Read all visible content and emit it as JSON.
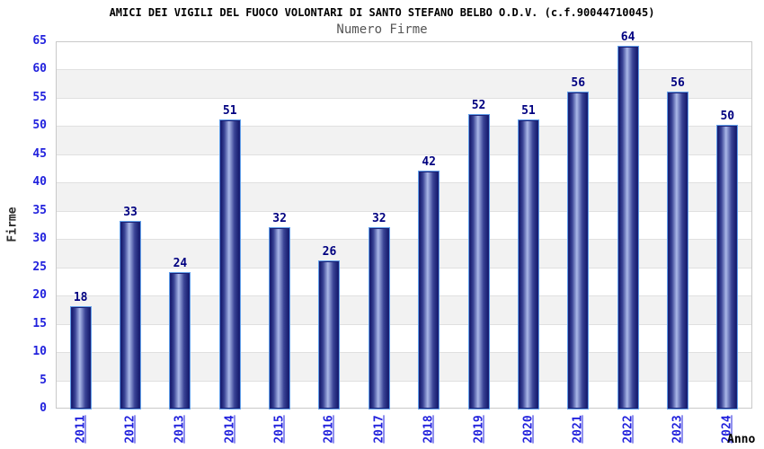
{
  "chart_data": {
    "type": "bar",
    "title": "AMICI DEI VIGILI DEL FUOCO VOLONTARI DI SANTO STEFANO BELBO O.D.V. (c.f.90044710045)",
    "subtitle": "Numero Firme",
    "xlabel": "Anno",
    "ylabel": "Firme",
    "categories": [
      "2011",
      "2012",
      "2013",
      "2014",
      "2015",
      "2016",
      "2017",
      "2018",
      "2019",
      "2020",
      "2021",
      "2022",
      "2023",
      "2024"
    ],
    "values": [
      18,
      33,
      24,
      51,
      32,
      26,
      32,
      42,
      52,
      51,
      56,
      64,
      56,
      50
    ],
    "ylim": [
      0,
      65
    ],
    "ytick_step": 5,
    "grid": true,
    "banded_background": true,
    "legend": "none",
    "colors": {
      "bar_border": "#1b2076",
      "bar_outline": "#62a0ea",
      "bar_gradient_edge": "#171c6e",
      "bar_gradient_mid1": "#3a4496",
      "bar_gradient_center": "#aab8e8",
      "value_label": "#000080",
      "axis_tick_label": "#2222dd",
      "x_tick_link": "#2222dd",
      "band_gray": "#f2f2f2",
      "gridline": "#e0e0e0",
      "plot_border": "#c9c9c9",
      "title": "#000000",
      "subtitle": "#555555",
      "ylabel": "#2b2b2b",
      "xlabel": "#000000"
    }
  }
}
